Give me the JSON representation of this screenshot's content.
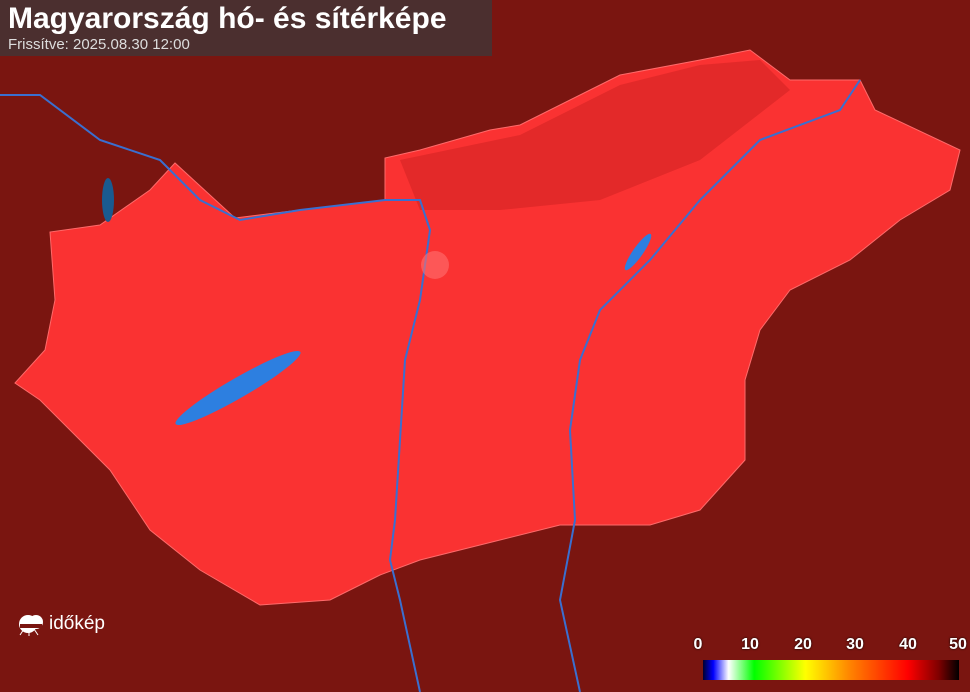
{
  "header": {
    "title": "Magyarország hó- és sítérképe",
    "updated": "Frissítve: 2025.08.30 12:00"
  },
  "logo": {
    "text": "időkép",
    "icon": "cloud-sun-icon"
  },
  "legend": {
    "ticks": [
      "0",
      "10",
      "20",
      "30",
      "40",
      "50"
    ],
    "colors": [
      "#000030",
      "#0000ff",
      "#ffffff",
      "#00ff00",
      "#ffff00",
      "#ff8000",
      "#ff0000",
      "#800000",
      "#000000"
    ]
  },
  "map": {
    "country_fill": "#ff3333",
    "surround_fill": "#7a1510",
    "water": "#2d7fe0"
  }
}
